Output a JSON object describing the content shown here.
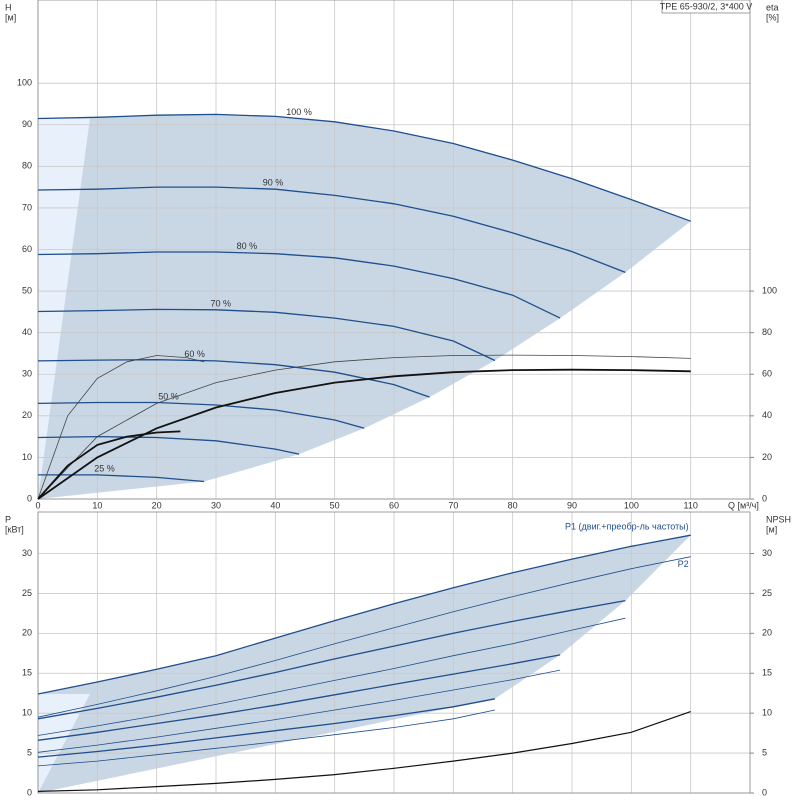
{
  "chart_data": [
    {
      "type": "line",
      "title": "TPE 65-930/2, 3*400 V",
      "x_label": "Q [м³/ч]",
      "y_label": "H",
      "y_unit": "[м]",
      "y2_label": "eta",
      "y2_unit": "[%]",
      "xlim": [
        0,
        120
      ],
      "xticks": [
        0,
        10,
        20,
        30,
        40,
        50,
        60,
        70,
        80,
        90,
        100,
        110
      ],
      "ylim": [
        0,
        120
      ],
      "yticks": [
        0,
        10,
        20,
        30,
        40,
        50,
        60,
        70,
        80,
        90,
        100
      ],
      "y2lim": [
        0,
        240
      ],
      "y2ticks": [
        0,
        20,
        40,
        60,
        80,
        100
      ],
      "grid": true,
      "series": [
        {
          "name": "100 %",
          "color": "#1f4e8c",
          "line_width": 1.3,
          "x": [
            0,
            10,
            20,
            30,
            40,
            50,
            60,
            70,
            80,
            90,
            100,
            110
          ],
          "values": [
            91.5,
            91.8,
            92.3,
            92.5,
            92.0,
            90.7,
            88.5,
            85.5,
            81.5,
            77,
            72,
            66.8
          ]
        },
        {
          "name": "90 %",
          "color": "#1f4e8c",
          "line_width": 1.3,
          "x": [
            0,
            10,
            20,
            30,
            40,
            50,
            60,
            70,
            80,
            90,
            99
          ],
          "values": [
            74.3,
            74.5,
            75,
            75,
            74.5,
            73,
            71,
            68,
            64,
            59.5,
            54.5
          ]
        },
        {
          "name": "80 %",
          "color": "#1f4e8c",
          "line_width": 1.3,
          "x": [
            0,
            10,
            20,
            30,
            40,
            50,
            60,
            70,
            80,
            88
          ],
          "values": [
            58.8,
            59,
            59.4,
            59.4,
            59,
            58,
            56,
            53,
            49,
            43.5
          ]
        },
        {
          "name": "70 %",
          "color": "#1f4e8c",
          "line_width": 1.3,
          "x": [
            0,
            10,
            20,
            30,
            40,
            50,
            60,
            70,
            77
          ],
          "values": [
            45.1,
            45.3,
            45.6,
            45.5,
            44.9,
            43.5,
            41.5,
            38,
            33.3
          ]
        },
        {
          "name": "60 %",
          "color": "#1f4e8c",
          "line_width": 1.3,
          "x": [
            0,
            10,
            20,
            30,
            40,
            50,
            60,
            66
          ],
          "values": [
            33.2,
            33.4,
            33.5,
            33.2,
            32.3,
            30.5,
            27.5,
            24.5
          ]
        },
        {
          "name": "50 %",
          "color": "#1f4e8c",
          "line_width": 1.3,
          "x": [
            0,
            10,
            20,
            30,
            40,
            50,
            55
          ],
          "values": [
            23,
            23.2,
            23.2,
            22.6,
            21.4,
            19,
            17
          ]
        },
        {
          "name": null,
          "color": "#1f4e8c",
          "line_width": 1.3,
          "x": [
            0,
            10,
            20,
            30,
            40,
            44
          ],
          "values": [
            14.8,
            15,
            14.8,
            14,
            12,
            10.8
          ]
        },
        {
          "name": "25 %",
          "color": "#1f4e8c",
          "line_width": 1.3,
          "x": [
            0,
            10,
            20,
            28
          ],
          "values": [
            5.8,
            5.8,
            5.2,
            4.2
          ]
        },
        {
          "name": null,
          "axis": "y2",
          "color": "#444444",
          "line_width": 0.8,
          "x": [
            0,
            10,
            20,
            30,
            40,
            50,
            60,
            70,
            80,
            90,
            100,
            110
          ],
          "values": [
            0,
            30,
            46,
            56,
            62,
            66,
            68,
            69,
            69.2,
            69,
            68.5,
            67.6
          ]
        },
        {
          "name": null,
          "axis": "y2",
          "color": "#444444",
          "line_width": 0.8,
          "x": [
            0,
            5,
            10,
            15,
            20,
            25,
            28
          ],
          "values": [
            0,
            40,
            58,
            66,
            69,
            68,
            66
          ]
        },
        {
          "name": null,
          "axis": "y2",
          "color": "#111111",
          "line_width": 1.8,
          "x": [
            0,
            10,
            20,
            30,
            40,
            50,
            60,
            70,
            80,
            90,
            100,
            110
          ],
          "values": [
            0,
            20,
            34,
            44,
            51,
            56,
            59,
            61,
            62,
            62.2,
            62,
            61.4
          ]
        },
        {
          "name": null,
          "axis": "y2",
          "color": "#111111",
          "line_width": 1.8,
          "x": [
            0,
            5,
            10,
            15,
            20,
            24
          ],
          "values": [
            0,
            16,
            26,
            30,
            32,
            32.5
          ]
        }
      ]
    },
    {
      "type": "line",
      "y_label": "P",
      "y_unit": "[кВт]",
      "y2_label": "NPSH",
      "y2_unit": "[м]",
      "xlim": [
        0,
        120
      ],
      "xticks": [
        0,
        10,
        20,
        30,
        40,
        50,
        60,
        70,
        80,
        90,
        100,
        110
      ],
      "ylim": [
        0,
        35.2
      ],
      "yticks": [
        0,
        5,
        10,
        15,
        20,
        25,
        30
      ],
      "y2lim": [
        0,
        35.2
      ],
      "y2ticks": [
        0,
        5,
        10,
        15,
        20,
        25,
        30
      ],
      "grid": true,
      "series": [
        {
          "name": "P1 (двиг.+преобр-ль частоты)",
          "color": "#1f4e8c",
          "line_width": 1.3,
          "x": [
            0,
            10,
            20,
            30,
            40,
            50,
            60,
            70,
            80,
            90,
            100,
            110
          ],
          "values": [
            12.4,
            13.9,
            15.5,
            17.2,
            19.4,
            21.6,
            23.7,
            25.7,
            27.6,
            29.3,
            30.9,
            32.3
          ]
        },
        {
          "name": "P2",
          "color": "#1f4e8c",
          "line_width": 0.8,
          "x": [
            0,
            10,
            20,
            30,
            40,
            50,
            60,
            70,
            80,
            90,
            100,
            110
          ],
          "values": [
            9.5,
            11.1,
            12.8,
            14.6,
            16.6,
            18.7,
            20.7,
            22.7,
            24.6,
            26.4,
            28.1,
            29.6
          ]
        },
        {
          "name": null,
          "color": "#1f4e8c",
          "line_width": 1.3,
          "x": [
            0,
            10,
            20,
            30,
            40,
            50,
            60,
            70,
            80,
            90,
            99
          ],
          "values": [
            9.3,
            10.6,
            12,
            13.5,
            15.1,
            16.8,
            18.4,
            20,
            21.5,
            22.9,
            24.1
          ]
        },
        {
          "name": null,
          "color": "#1f4e8c",
          "line_width": 0.8,
          "x": [
            0,
            10,
            20,
            30,
            40,
            50,
            60,
            70,
            80,
            90,
            99
          ],
          "values": [
            7.2,
            8.4,
            9.7,
            11.1,
            12.6,
            14.1,
            15.6,
            17.2,
            18.7,
            20.4,
            21.9
          ]
        },
        {
          "name": null,
          "color": "#1f4e8c",
          "line_width": 1.3,
          "x": [
            0,
            10,
            20,
            30,
            40,
            50,
            60,
            70,
            80,
            88
          ],
          "values": [
            6.6,
            7.6,
            8.7,
            9.8,
            11,
            12.3,
            13.6,
            14.9,
            16.2,
            17.3
          ]
        },
        {
          "name": null,
          "color": "#1f4e8c",
          "line_width": 0.8,
          "x": [
            0,
            10,
            20,
            30,
            40,
            50,
            60,
            70,
            80,
            88
          ],
          "values": [
            5.1,
            6,
            7,
            8.1,
            9.2,
            10.4,
            11.6,
            12.9,
            14.2,
            15.4
          ]
        },
        {
          "name": null,
          "color": "#1f4e8c",
          "line_width": 1.3,
          "x": [
            0,
            10,
            20,
            30,
            40,
            50,
            60,
            70,
            77
          ],
          "values": [
            4.5,
            5.2,
            6,
            6.9,
            7.8,
            8.7,
            9.7,
            10.8,
            11.8
          ]
        },
        {
          "name": null,
          "color": "#1f4e8c",
          "line_width": 0.8,
          "x": [
            0,
            10,
            20,
            30,
            40,
            50,
            60,
            70,
            77
          ],
          "values": [
            3.4,
            4,
            4.8,
            5.6,
            6.4,
            7.3,
            8.2,
            9.3,
            10.4
          ]
        },
        {
          "name": null,
          "axis": "y2",
          "color": "#111111",
          "line_width": 1.2,
          "x": [
            0,
            10,
            20,
            30,
            40,
            50,
            60,
            70,
            80,
            90,
            100,
            110
          ],
          "values": [
            0.2,
            0.4,
            0.8,
            1.2,
            1.7,
            2.3,
            3.1,
            4,
            5,
            6.2,
            7.6,
            10.2
          ]
        }
      ]
    }
  ]
}
